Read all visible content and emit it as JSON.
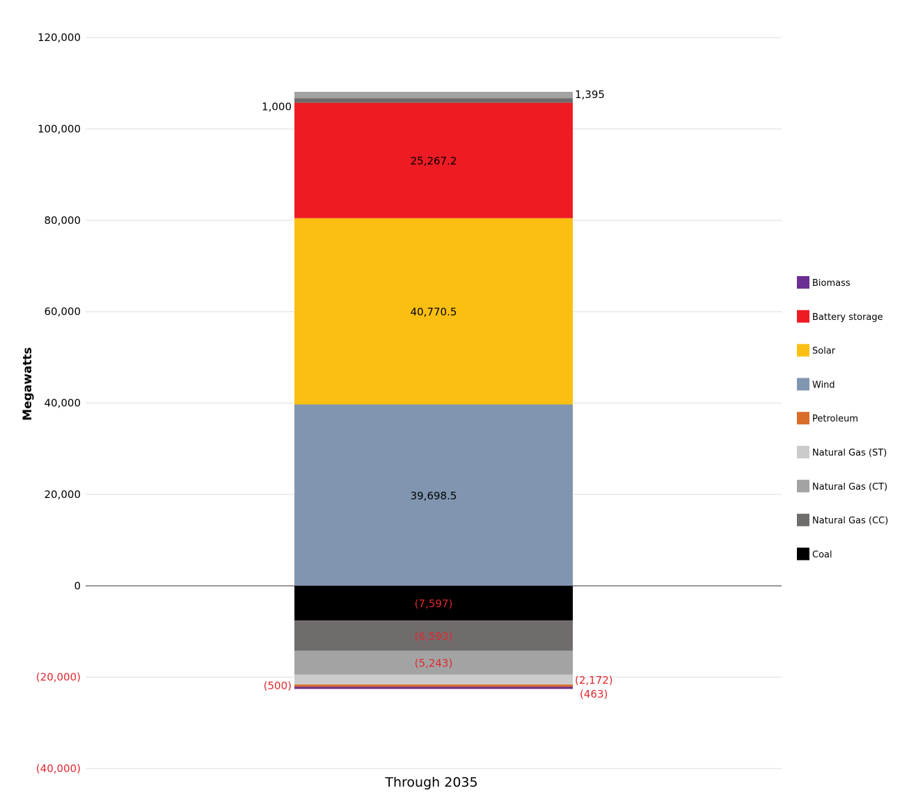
{
  "chart_data": {
    "type": "bar",
    "stacked": true,
    "title": "",
    "xlabel": "Through 2035",
    "ylabel": "Megawatts",
    "categories": [
      "Through 2035"
    ],
    "ylim": [
      -40000,
      120000
    ],
    "yticks": [
      120000,
      100000,
      80000,
      60000,
      40000,
      20000,
      0,
      -20000,
      -40000
    ],
    "ytick_labels": [
      "120,000",
      "100,000",
      "80,000",
      "60,000",
      "40,000",
      "20,000",
      "0",
      "(20,000)",
      "(40,000)"
    ],
    "grid": true,
    "legend_position": "right",
    "series": [
      {
        "name": "Wind",
        "color": "#8096b0",
        "values": [
          39698.5
        ],
        "label": "39,698.5",
        "label_pos": "inside"
      },
      {
        "name": "Solar",
        "color": "#fbbf11",
        "values": [
          40770.5
        ],
        "label": "40,770.5",
        "label_pos": "inside"
      },
      {
        "name": "Battery storage",
        "color": "#ed1c24",
        "values": [
          25267.2
        ],
        "label": "25,267.2",
        "label_pos": "inside"
      },
      {
        "name": "Natural Gas (CC)",
        "color": "#716c6c",
        "values": [
          1000
        ],
        "label": "1,000",
        "label_pos": "left"
      },
      {
        "name": "Natural Gas (CT)",
        "color": "#a3a3a3",
        "values": [
          1395
        ],
        "label": "1,395",
        "label_pos": "right"
      },
      {
        "name": "Coal",
        "color": "#000000",
        "values": [
          -7597
        ],
        "label": "(7,597)",
        "label_pos": "inside"
      },
      {
        "name": "Natural Gas (CC)",
        "color": "#716c6c",
        "values": [
          -6593
        ],
        "label": "(6,593)",
        "label_pos": "inside"
      },
      {
        "name": "Natural Gas (CT)",
        "color": "#a3a3a3",
        "values": [
          -5243
        ],
        "label": "(5,243)",
        "label_pos": "inside"
      },
      {
        "name": "Natural Gas (ST)",
        "color": "#cbcbcb",
        "values": [
          -2172
        ],
        "label": "(2,172)",
        "label_pos": "right"
      },
      {
        "name": "Petroleum",
        "color": "#d86d2a",
        "values": [
          -500
        ],
        "label": "(500)",
        "label_pos": "left"
      },
      {
        "name": "Biomass",
        "color": "#6b2e91",
        "values": [
          -463
        ],
        "label": "(463)",
        "label_pos": "right2"
      }
    ],
    "legend": [
      {
        "name": "Biomass",
        "color": "#6b2e91"
      },
      {
        "name": "Battery storage",
        "color": "#ed1c24"
      },
      {
        "name": "Solar",
        "color": "#fbbf11"
      },
      {
        "name": "Wind",
        "color": "#8096b0"
      },
      {
        "name": "Petroleum",
        "color": "#d86d2a"
      },
      {
        "name": "Natural Gas (ST)",
        "color": "#cbcbcb"
      },
      {
        "name": "Natural Gas (CT)",
        "color": "#a3a3a3"
      },
      {
        "name": "Natural Gas (CC)",
        "color": "#716c6c"
      },
      {
        "name": "Coal",
        "color": "#000000"
      }
    ],
    "negative_label_color": "#e0282e"
  }
}
